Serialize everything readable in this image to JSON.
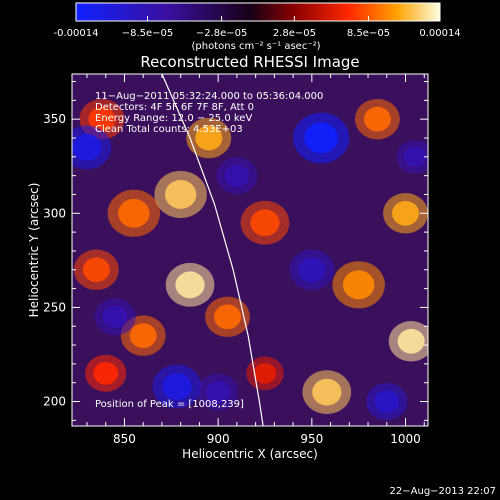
{
  "chart_data": {
    "type": "heatmap",
    "title": "Reconstructed RHESSI Image",
    "xlabel": "Heliocentric X (arcsec)",
    "ylabel": "Heliocentric Y (arcsec)",
    "xlim": [
      822,
      1012
    ],
    "ylim": [
      187,
      374
    ],
    "x_ticks": [
      850,
      900,
      950,
      1000
    ],
    "y_ticks": [
      200,
      250,
      300,
      350
    ],
    "colorbar": {
      "range": [
        -0.00014,
        0.00014
      ],
      "tick_values": [
        -0.00014,
        -8.5e-05,
        -2.8e-05,
        2.8e-05,
        8.5e-05,
        0.00014
      ],
      "tick_labels": [
        "-0.00014",
        "−8.5e−05",
        "−2.8e−05",
        "2.8e−05",
        "8.5e−05",
        "0.00014"
      ],
      "unit_label": "(photons cm⁻² s⁻¹ asec⁻²)"
    },
    "info_lines": [
      "11−Aug−2011 05:32:24.000 to 05:36:04.000",
      "Detectors: 4F 5F 6F 7F 8F, Att 0",
      "Energy Range: 12.0 − 25.0 keV",
      "Clean    Total counts: 4.53E+03"
    ],
    "peak_label": "Position of Peak = [1008,239]",
    "date_stamp": "22−Aug−2013 22:07",
    "limb_points": [
      [
        870,
        374
      ],
      [
        885,
        340
      ],
      [
        898,
        305
      ],
      [
        908,
        270
      ],
      [
        916,
        235
      ],
      [
        922,
        200
      ],
      [
        924,
        187
      ]
    ],
    "blobs": [
      {
        "x": 838,
        "y": 350,
        "v": 7.5e-05,
        "s": 12
      },
      {
        "x": 835,
        "y": 270,
        "v": 8e-05,
        "s": 12
      },
      {
        "x": 855,
        "y": 300,
        "v": 9e-05,
        "s": 14
      },
      {
        "x": 860,
        "y": 235,
        "v": 9e-05,
        "s": 12
      },
      {
        "x": 840,
        "y": 215,
        "v": 7e-05,
        "s": 11
      },
      {
        "x": 880,
        "y": 310,
        "v": 0.00012,
        "s": 14
      },
      {
        "x": 885,
        "y": 262,
        "v": 0.00013,
        "s": 13
      },
      {
        "x": 895,
        "y": 340,
        "v": 0.00011,
        "s": 12
      },
      {
        "x": 905,
        "y": 245,
        "v": 9e-05,
        "s": 12
      },
      {
        "x": 925,
        "y": 295,
        "v": 8e-05,
        "s": 13
      },
      {
        "x": 925,
        "y": 215,
        "v": 6e-05,
        "s": 10
      },
      {
        "x": 958,
        "y": 205,
        "v": 0.00012,
        "s": 13
      },
      {
        "x": 975,
        "y": 262,
        "v": 0.0001,
        "s": 14
      },
      {
        "x": 1000,
        "y": 300,
        "v": 0.00011,
        "s": 12
      },
      {
        "x": 1003,
        "y": 232,
        "v": 0.00013,
        "s": 12
      },
      {
        "x": 985,
        "y": 350,
        "v": 9e-05,
        "s": 12
      },
      {
        "x": 830,
        "y": 335,
        "v": -0.00012,
        "s": 13
      },
      {
        "x": 878,
        "y": 208,
        "v": -0.00012,
        "s": 13
      },
      {
        "x": 955,
        "y": 340,
        "v": -0.00014,
        "s": 15
      },
      {
        "x": 950,
        "y": 270,
        "v": -9e-05,
        "s": 12
      },
      {
        "x": 990,
        "y": 200,
        "v": -0.0001,
        "s": 11
      },
      {
        "x": 910,
        "y": 320,
        "v": -8e-05,
        "s": 11
      },
      {
        "x": 845,
        "y": 245,
        "v": -8e-05,
        "s": 11
      },
      {
        "x": 1005,
        "y": 330,
        "v": -8e-05,
        "s": 10
      },
      {
        "x": 900,
        "y": 205,
        "v": -8e-05,
        "s": 11
      }
    ]
  }
}
